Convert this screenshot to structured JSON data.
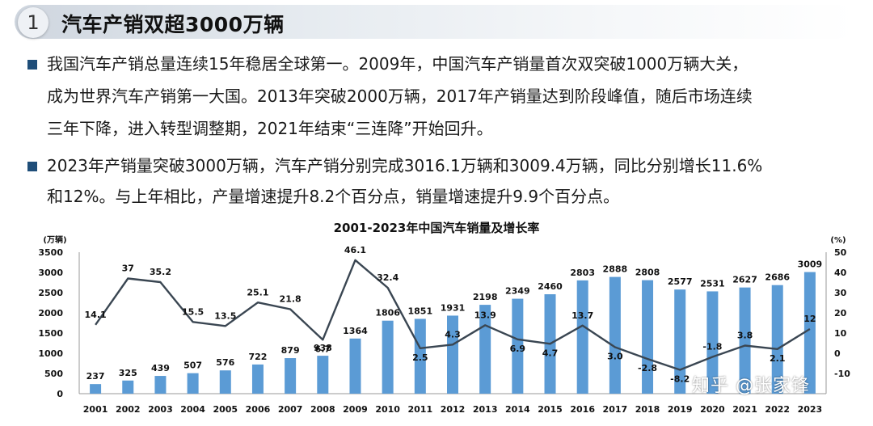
{
  "header": {
    "number": "1",
    "title": "汽车产销双超3000万辆"
  },
  "paragraphs": [
    {
      "lines": [
        "我国汽车产销总量连续15年稳居全球第一。2009年，中国汽车产销量首次双突破1000万辆大关，",
        "成为世界汽车产销第一大国。2013年突破2000万辆，2017年产销量达到阶段峰值，随后市场连续",
        "三年下降，进入转型调整期，2021年结束“三连降”开始回升。"
      ]
    },
    {
      "lines": [
        "2023年产销量突破3000万辆，汽车产销分别完成3016.1万辆和3009.4万辆，同比分别增长11.6%",
        "和12%。与上年相比，产量增速提升8.2个百分点，销量增速提升9.9个百分点。"
      ]
    }
  ],
  "watermark": "知乎 @张家锋",
  "chart_data": {
    "type": "bar",
    "title": "2001-2023年中国汽车销量及增长率",
    "y_left_unit": "(万辆)",
    "y_right_unit": "(%)",
    "categories": [
      "2001",
      "2002",
      "2003",
      "2004",
      "2005",
      "2006",
      "2007",
      "2008",
      "2009",
      "2010",
      "2011",
      "2012",
      "2013",
      "2014",
      "2015",
      "2016",
      "2017",
      "2018",
      "2019",
      "2020",
      "2021",
      "2022",
      "2023"
    ],
    "ylim_left": [
      0,
      3500
    ],
    "yticks_left": [
      0,
      500,
      1000,
      1500,
      2000,
      2500,
      3000,
      3500
    ],
    "ylim_right": [
      -20,
      50
    ],
    "yticks_right": [
      -10,
      0,
      10,
      20,
      30,
      40,
      50
    ],
    "series": [
      {
        "type": "bar",
        "color": "#5b9bd5",
        "values": [
          237,
          325,
          439,
          507,
          576,
          722,
          879,
          938,
          1364,
          1806,
          1851,
          1931,
          2198,
          2349,
          2460,
          2803,
          2888,
          2808,
          2577,
          2531,
          2627,
          2686,
          3009
        ]
      },
      {
        "type": "line",
        "color": "#3a4652",
        "values": [
          14.1,
          37,
          35.2,
          15.5,
          13.5,
          25.1,
          21.8,
          6.7,
          46.1,
          32.4,
          2.5,
          4.3,
          13.9,
          6.9,
          4.7,
          13.7,
          3.0,
          -2.8,
          -8.2,
          -1.8,
          3.8,
          2.1,
          12
        ]
      }
    ]
  }
}
